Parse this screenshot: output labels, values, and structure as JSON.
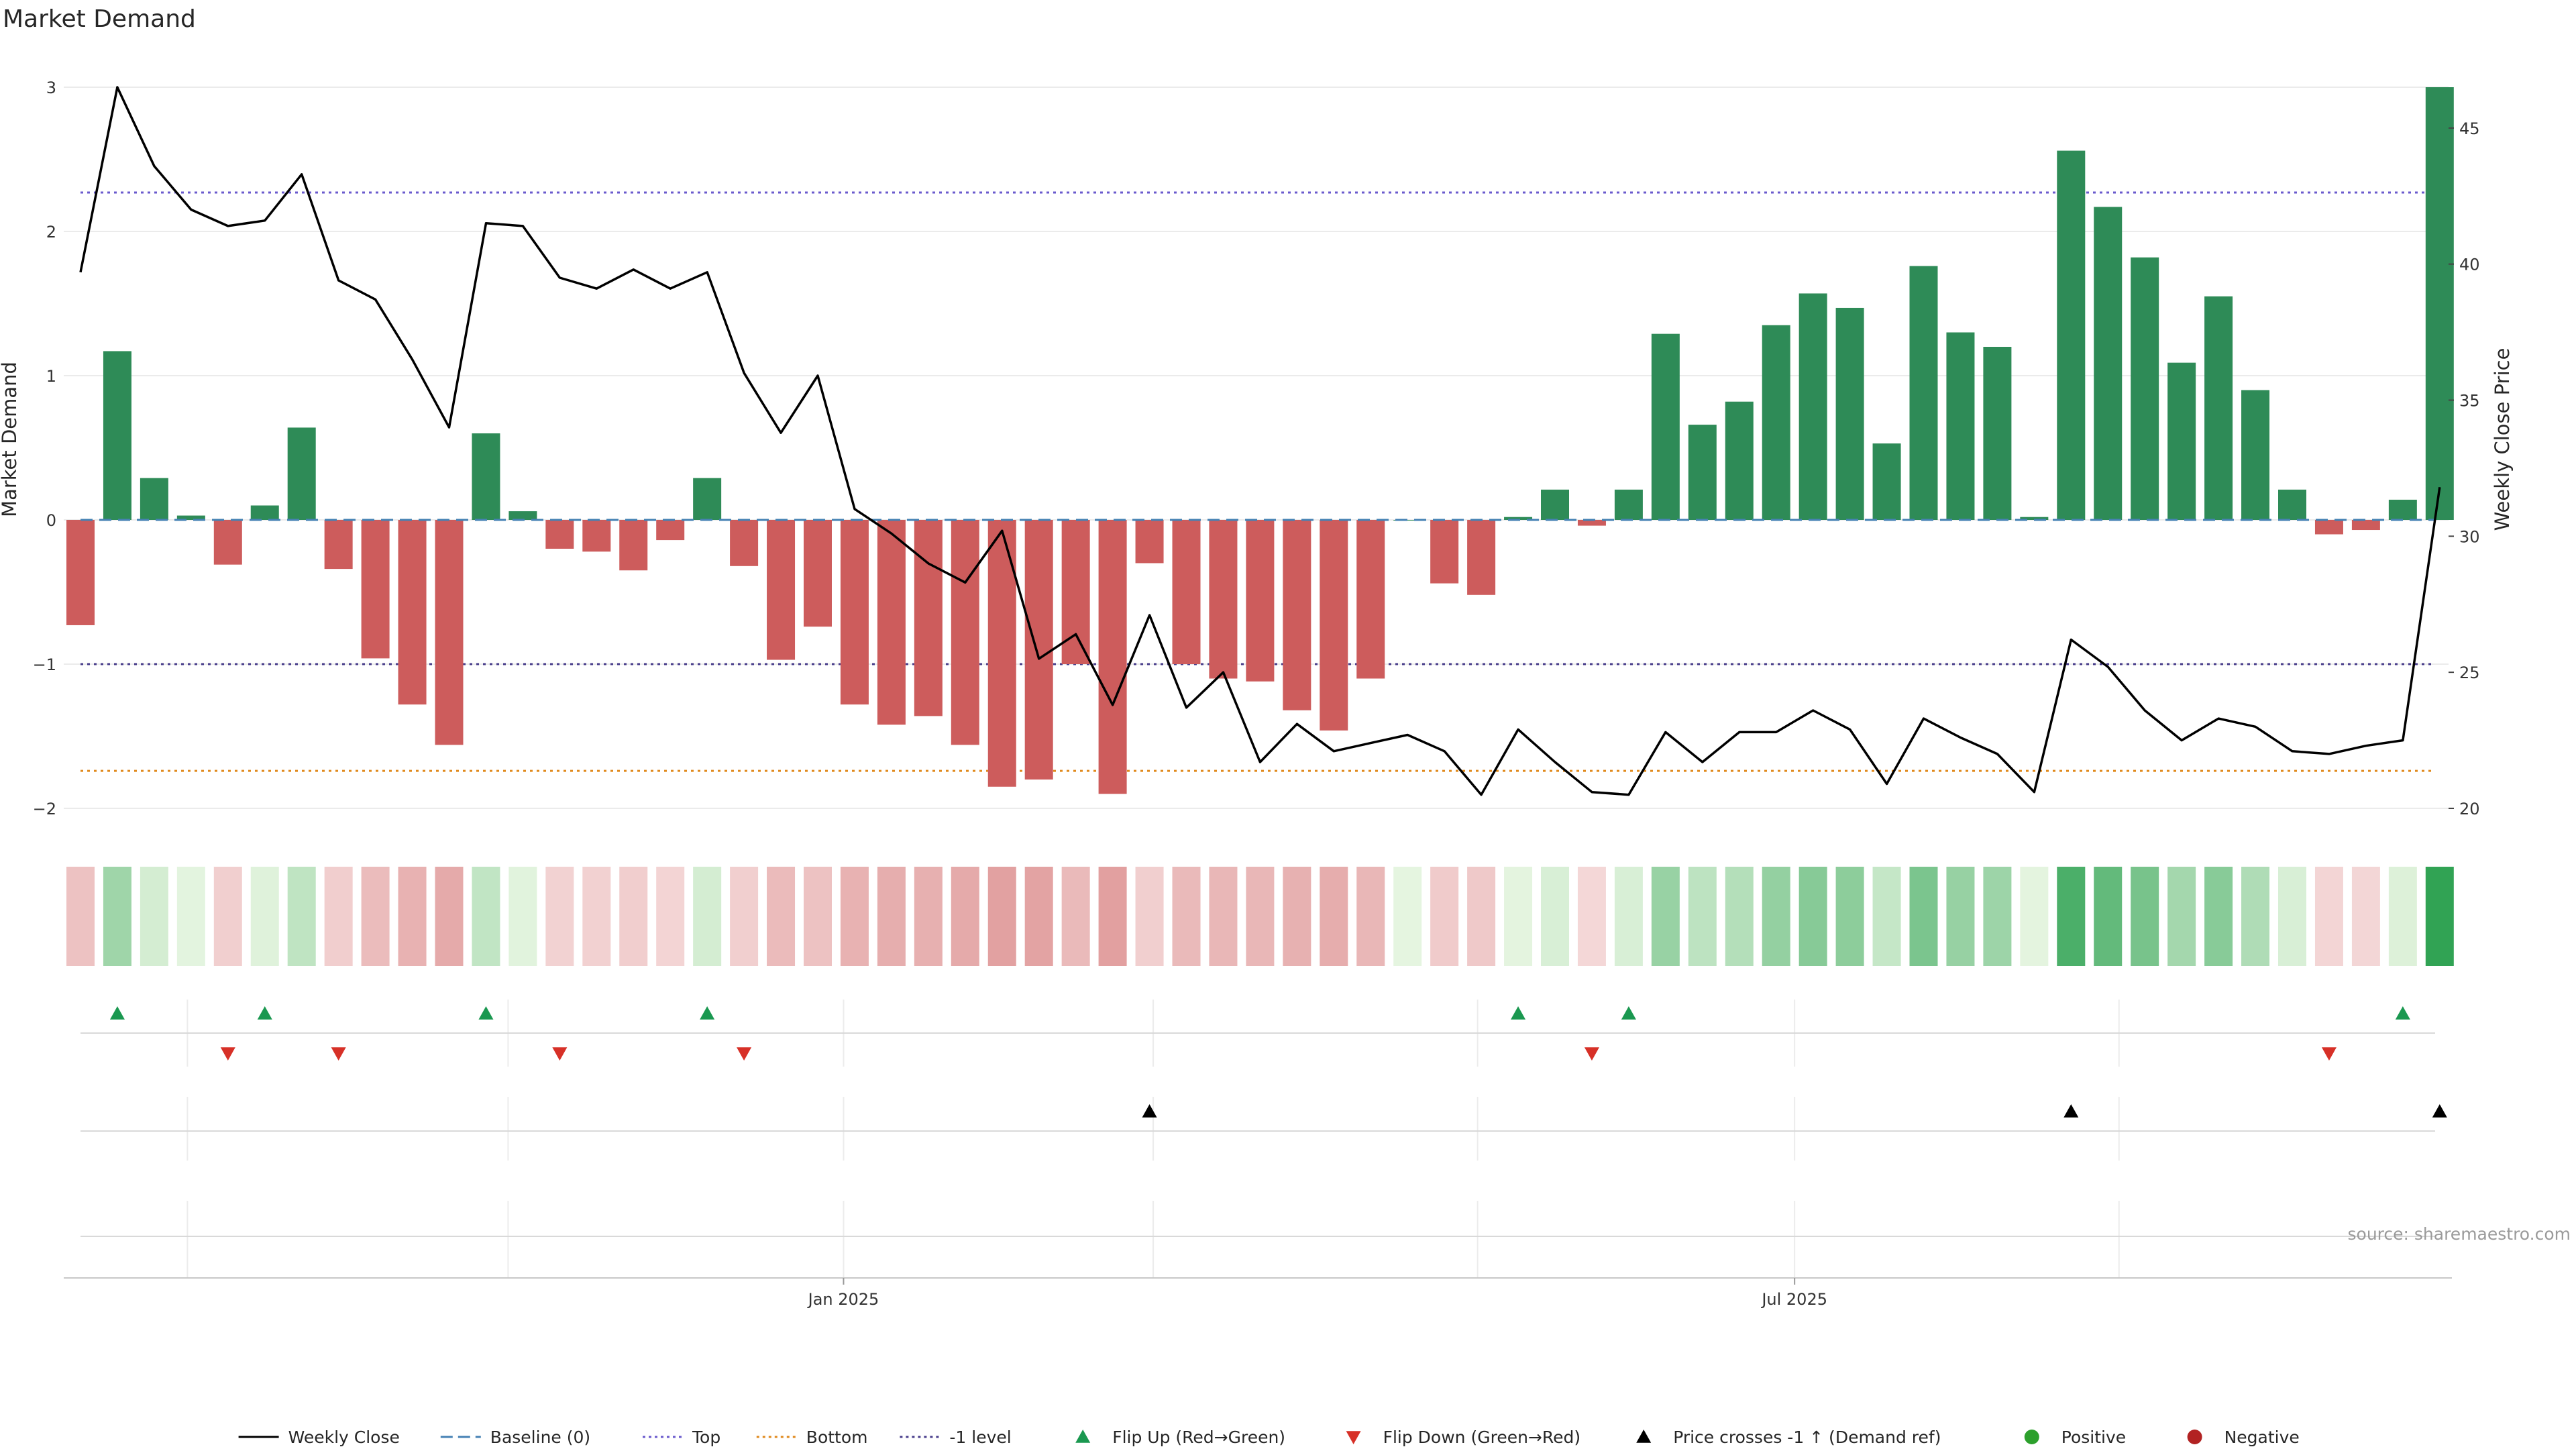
{
  "title": "Market Demand",
  "source_note": "source: sharemaestro.com",
  "colors": {
    "positive_bar": "#2e8b57",
    "negative_bar": "#cd5c5c",
    "price_line": "#000000",
    "baseline": "#4682b4",
    "top_line": "#6a5acd",
    "bottom_line": "#e08a1e",
    "minus1_line": "#483d8b",
    "flip_up": "#1a9850",
    "flip_down": "#d73027",
    "cross_marker": "#000000",
    "positive_dot": "#2ca02c",
    "negative_dot": "#b22222"
  },
  "legend": [
    {
      "label": "Weekly Close",
      "kind": "line-solid",
      "color": "#000000"
    },
    {
      "label": "Baseline (0)",
      "kind": "line-dashed",
      "color": "#4682b4"
    },
    {
      "label": "Top",
      "kind": "line-dotted",
      "color": "#6a5acd"
    },
    {
      "label": "Bottom",
      "kind": "line-dotted",
      "color": "#e08a1e"
    },
    {
      "label": "-1 level",
      "kind": "line-dotted",
      "color": "#483d8b"
    },
    {
      "label": "Flip Up (Red→Green)",
      "kind": "tri-up",
      "color": "#1a9850"
    },
    {
      "label": "Flip Down (Green→Red)",
      "kind": "tri-down",
      "color": "#d73027"
    },
    {
      "label": "Price crosses -1 ↑ (Demand ref)",
      "kind": "tri-up",
      "color": "#000000"
    },
    {
      "label": "Positive",
      "kind": "dot",
      "color": "#2ca02c"
    },
    {
      "label": "Negative",
      "kind": "dot",
      "color": "#b22222"
    }
  ],
  "chart_data": {
    "type": "bar",
    "title": "Market Demand",
    "ylabel": "Market Demand",
    "y2label": "Weekly Close Price",
    "ylim": [
      -2.0,
      3.0
    ],
    "y2lim": [
      20,
      46.5
    ],
    "yticks": [
      3,
      2,
      1,
      0,
      -1,
      -2
    ],
    "y2ticks": [
      45,
      40,
      35,
      30,
      25,
      20
    ],
    "x_tick_labels": [
      {
        "label": "Jan 2025",
        "week_index": 20.7
      },
      {
        "label": "Jul 2025",
        "week_index": 46.5
      }
    ],
    "x_gridline_weeks": [
      2.9,
      11.6,
      20.7,
      29.1,
      37.9,
      46.5,
      55.3
    ],
    "weeks": 65,
    "reference_lines": {
      "baseline": 0,
      "top": 2.27,
      "bottom": -1.74,
      "minus1": -1
    },
    "series": [
      {
        "name": "Market Demand",
        "values": [
          -0.73,
          1.17,
          0.29,
          0.03,
          -0.31,
          0.1,
          0.64,
          -0.34,
          -0.96,
          -1.28,
          -1.56,
          0.6,
          0.06,
          -0.2,
          -0.22,
          -0.35,
          -0.14,
          0.29,
          -0.32,
          -0.97,
          -0.74,
          -1.28,
          -1.42,
          -1.36,
          -1.56,
          -1.85,
          -1.8,
          -1.0,
          -1.9,
          -0.3,
          -1.0,
          -1.1,
          -1.12,
          -1.32,
          -1.46,
          -1.1,
          0.0,
          -0.44,
          -0.52,
          0.02,
          0.21,
          -0.04,
          0.21,
          1.29,
          0.66,
          0.82,
          1.35,
          1.57,
          1.47,
          0.53,
          1.76,
          1.3,
          1.2,
          0.02,
          2.56,
          2.17,
          1.82,
          1.09,
          1.55,
          0.9,
          0.21,
          -0.1,
          -0.07,
          0.14,
          3.0
        ]
      },
      {
        "name": "Weekly Close",
        "axis": "right",
        "values": [
          39.7,
          46.5,
          43.6,
          42.0,
          41.4,
          41.6,
          43.3,
          39.4,
          38.7,
          36.5,
          34.0,
          41.5,
          41.4,
          39.5,
          39.1,
          39.8,
          39.1,
          39.7,
          36.0,
          33.8,
          35.9,
          31.0,
          30.1,
          29.0,
          28.3,
          30.2,
          25.5,
          26.4,
          23.8,
          27.1,
          23.7,
          25.0,
          21.7,
          23.1,
          22.1,
          22.4,
          22.7,
          22.1,
          20.5,
          22.9,
          21.7,
          20.6,
          20.5,
          22.8,
          21.7,
          22.8,
          22.8,
          23.6,
          22.9,
          20.9,
          23.3,
          22.6,
          22.0,
          20.6,
          26.2,
          25.2,
          23.6,
          22.5,
          23.3,
          23.0,
          22.1,
          22.0,
          22.3,
          22.5,
          31.8
        ]
      }
    ],
    "flip_up_weeks": [
      1,
      5,
      11,
      17,
      39,
      42,
      63
    ],
    "flip_down_weeks": [
      4,
      7,
      13,
      18,
      41,
      61
    ],
    "price_cross_weeks": [
      29,
      54,
      64
    ]
  }
}
